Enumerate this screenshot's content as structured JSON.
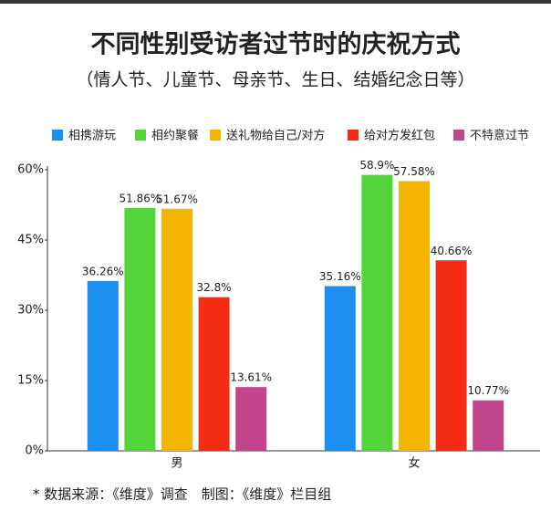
{
  "chart_data": {
    "type": "bar",
    "title": "不同性别受访者过节时的庆祝方式",
    "subtitle": "（情人节、儿童节、母亲节、生日、结婚纪念日等）",
    "categories": [
      "男",
      "女"
    ],
    "series": [
      {
        "name": "相携游玩",
        "color": "#1b8ff0",
        "values": [
          36.26,
          35.16
        ],
        "value_labels": [
          "36.26%",
          "35.16%"
        ]
      },
      {
        "name": "相约聚餐",
        "color": "#55d33b",
        "values": [
          51.86,
          58.9
        ],
        "value_labels": [
          "51.86%",
          "58.9%"
        ]
      },
      {
        "name": "送礼物给自己/对方",
        "color": "#f6b500",
        "values": [
          51.67,
          57.58
        ],
        "value_labels": [
          "51.67%",
          "57.58%"
        ]
      },
      {
        "name": "给对方发红包",
        "color": "#f42c13",
        "values": [
          32.8,
          40.66
        ],
        "value_labels": [
          "32.8%",
          "40.66%"
        ]
      },
      {
        "name": "不特意过节",
        "color": "#c0458b",
        "values": [
          13.61,
          10.77
        ],
        "value_labels": [
          "13.61%",
          "10.77%"
        ]
      }
    ],
    "ylim": [
      0,
      60
    ],
    "yticks": [
      {
        "value": 0,
        "label": "0%"
      },
      {
        "value": 15,
        "label": "15%"
      },
      {
        "value": 30,
        "label": "30%"
      },
      {
        "value": 45,
        "label": "45%"
      },
      {
        "value": 60,
        "label": "60%"
      }
    ],
    "footnote": "* 数据来源：《维度》调查　制图：《维度》栏目组"
  }
}
